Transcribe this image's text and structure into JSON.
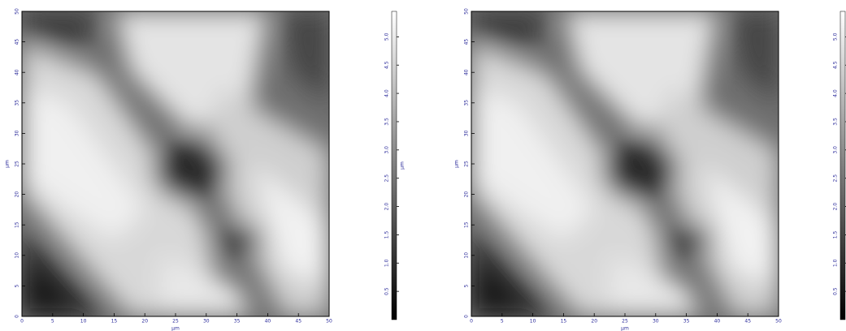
{
  "chart_data": [
    {
      "type": "heatmap",
      "xlabel": "µm",
      "ylabel": "µm",
      "xlim": [
        0,
        50
      ],
      "ylim": [
        0,
        50
      ],
      "xticks": [
        0,
        5,
        10,
        15,
        20,
        25,
        30,
        35,
        40,
        45,
        50
      ],
      "yticks": [
        0,
        5,
        10,
        15,
        20,
        25,
        30,
        35,
        40,
        45,
        50
      ],
      "colorbar": {
        "label": "µm",
        "lim": [
          0,
          5.45
        ],
        "ticks": [
          {
            "value": 0.5,
            "label": "0.5"
          },
          {
            "value": 1,
            "label": "1.0"
          },
          {
            "value": 1.5,
            "label": "1.5"
          },
          {
            "value": 2,
            "label": "2.0"
          },
          {
            "value": 2.5,
            "label": "2.5"
          },
          {
            "value": 3,
            "label": "3.0"
          },
          {
            "value": 3.5,
            "label": "3.5"
          },
          {
            "value": 4,
            "label": "4.0"
          },
          {
            "value": 4.5,
            "label": "4.5"
          },
          {
            "value": 5,
            "label": "5.0"
          }
        ]
      }
    },
    {
      "type": "heatmap",
      "xlabel": "µm",
      "ylabel": "µm",
      "xlim": [
        0,
        50
      ],
      "ylim": [
        0,
        50
      ],
      "xticks": [
        0,
        5,
        10,
        15,
        20,
        25,
        30,
        35,
        40,
        45,
        50
      ],
      "yticks": [
        0,
        5,
        10,
        15,
        20,
        25,
        30,
        35,
        40,
        45,
        50
      ],
      "colorbar": {
        "label": "µm",
        "lim": [
          0,
          5.45
        ],
        "ticks": [
          {
            "value": 0.5,
            "label": "0.5"
          },
          {
            "value": 1,
            "label": "1.0"
          },
          {
            "value": 1.5,
            "label": "1.5"
          },
          {
            "value": 2,
            "label": "2.0"
          },
          {
            "value": 2.5,
            "label": "2.5"
          },
          {
            "value": 3,
            "label": "3.0"
          },
          {
            "value": 3.5,
            "label": "3.5"
          },
          {
            "value": 4,
            "label": "4.0"
          },
          {
            "value": 4.5,
            "label": "4.5"
          },
          {
            "value": 5,
            "label": "5.0"
          }
        ]
      }
    }
  ]
}
